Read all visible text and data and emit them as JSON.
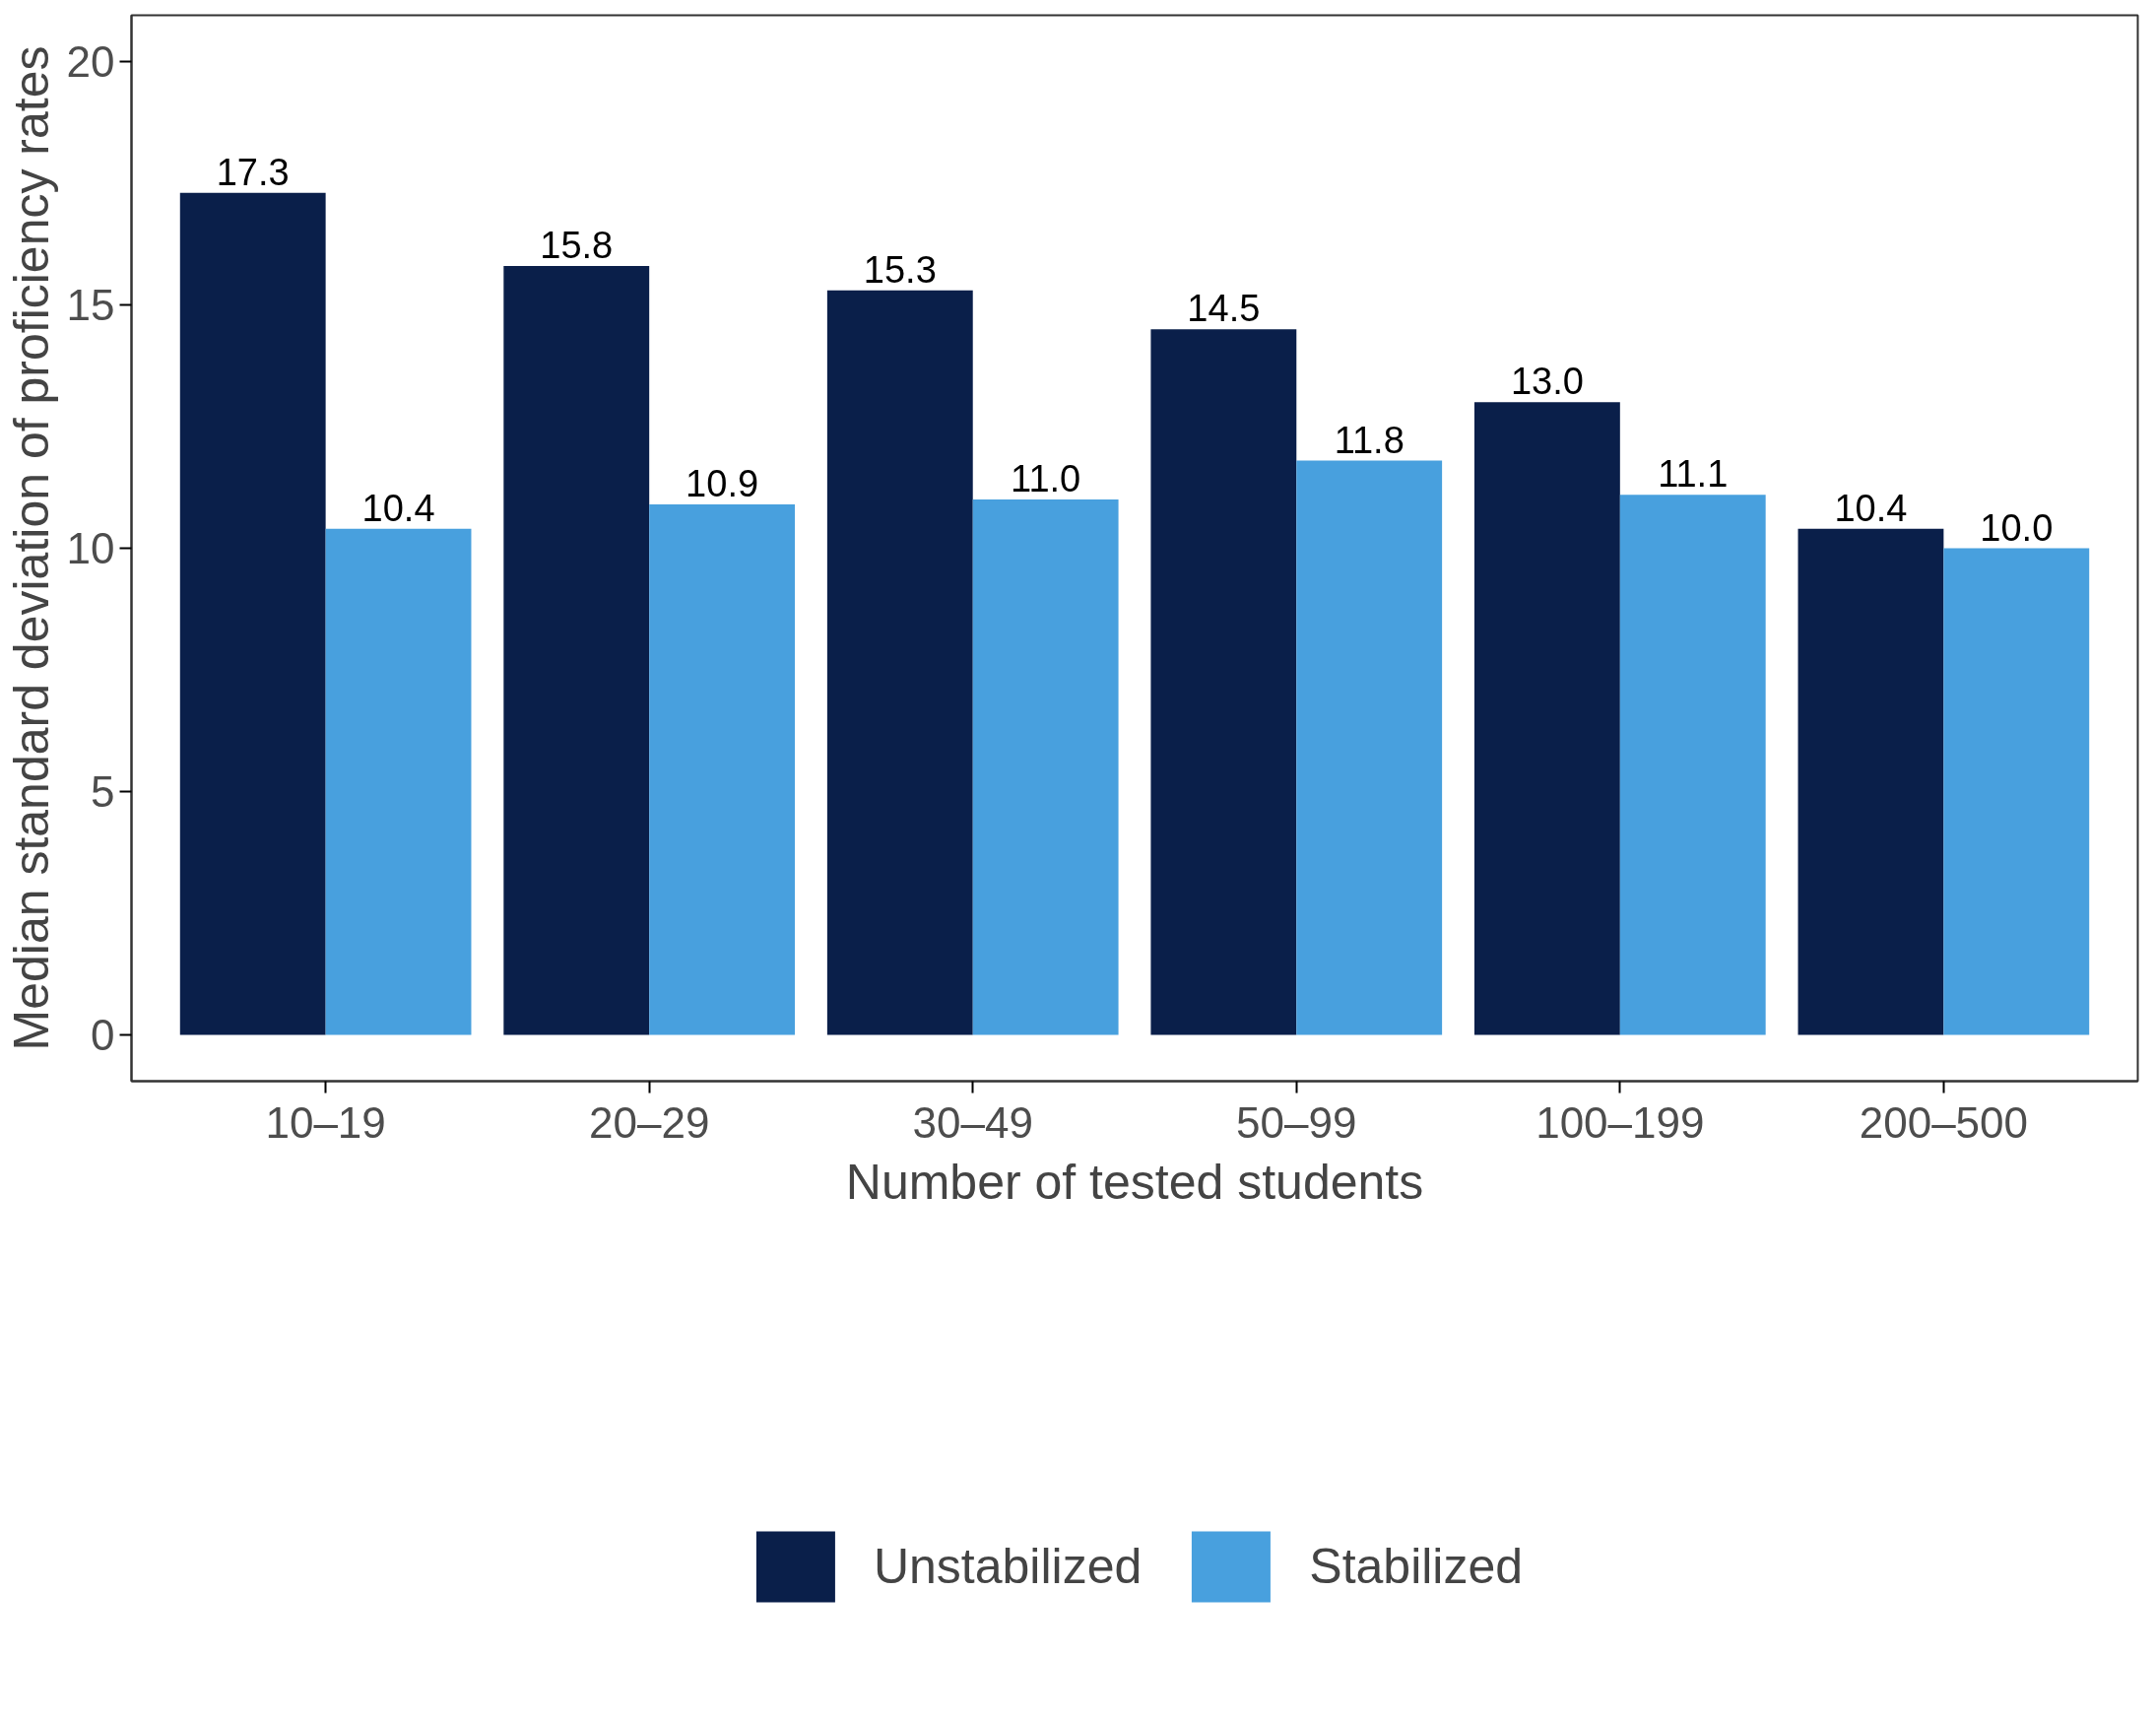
{
  "chart_data": {
    "type": "bar",
    "xlabel": "Number of tested students",
    "ylabel": "Median standard deviation of proficiency rates",
    "categories": [
      "10–19",
      "20–29",
      "30–49",
      "50–99",
      "100–199",
      "200–500"
    ],
    "series": [
      {
        "name": "Unstabilized",
        "color": "#0a1f4a",
        "values": [
          17.3,
          15.8,
          15.3,
          14.5,
          13.0,
          10.4
        ],
        "value_labels": [
          "17.3",
          "15.8",
          "15.3",
          "14.5",
          "13.0",
          "10.4"
        ]
      },
      {
        "name": "Stabilized",
        "color": "#48a0de",
        "values": [
          10.4,
          10.9,
          11.0,
          11.8,
          11.1,
          10.0
        ],
        "value_labels": [
          "10.4",
          "10.9",
          "11.0",
          "11.8",
          "11.1",
          "10.0"
        ]
      }
    ],
    "ylim": [
      -0.95,
      20.95
    ],
    "yticks": [
      0,
      5,
      10,
      15,
      20
    ],
    "grid": false,
    "legend": "bottom"
  }
}
